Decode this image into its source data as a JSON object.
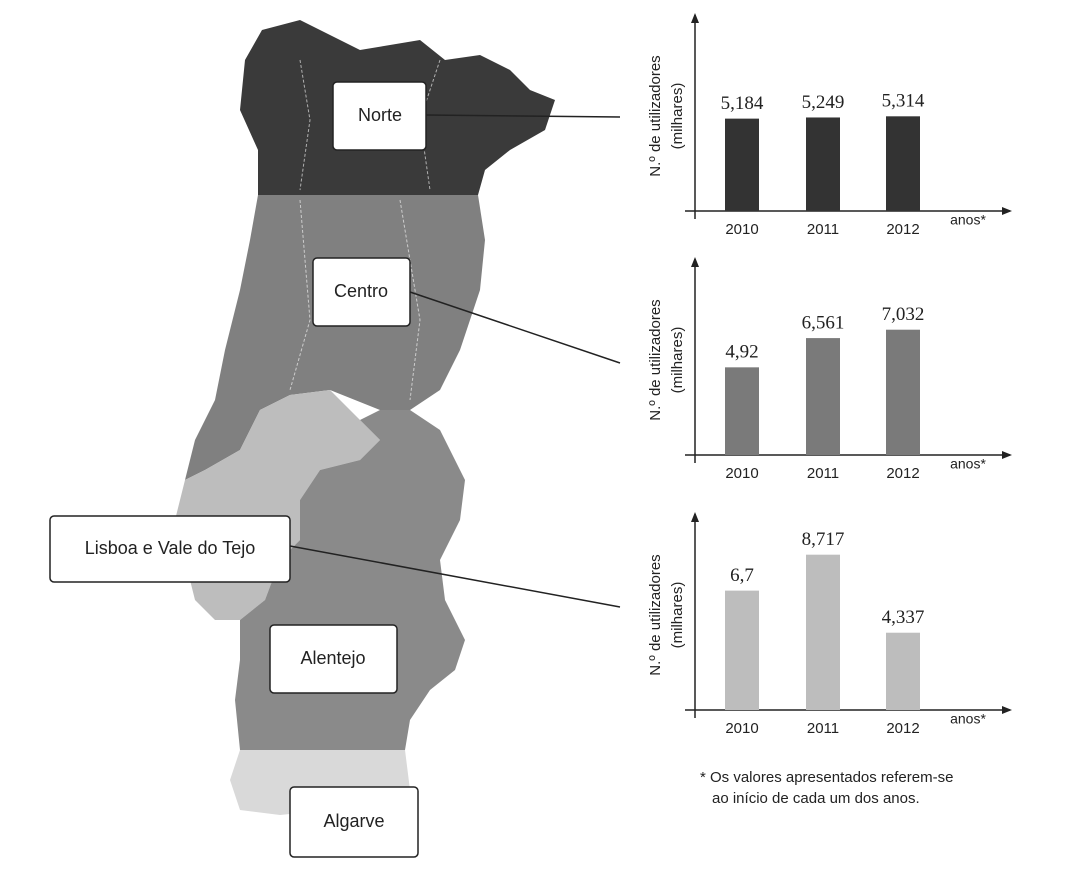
{
  "chart_data": [
    {
      "type": "bar",
      "ylabel": [
        "N.º de utilizadores",
        "(milhares)"
      ],
      "xlabel": "anos*",
      "categories": [
        "2010",
        "2011",
        "2012"
      ],
      "values": [
        5.184,
        5.249,
        5.314
      ],
      "value_labels": [
        "5,184",
        "5,249",
        "5,314"
      ],
      "color": "#333333",
      "ylim": [
        0,
        11
      ]
    },
    {
      "type": "bar",
      "ylabel": [
        "N.º de utilizadores",
        "(milhares)"
      ],
      "xlabel": "anos*",
      "categories": [
        "2010",
        "2011",
        "2012"
      ],
      "values": [
        4.92,
        6.561,
        7.032
      ],
      "value_labels": [
        "4,92",
        "6,561",
        "7,032"
      ],
      "color": "#7a7a7a",
      "ylim": [
        0,
        11
      ]
    },
    {
      "type": "bar",
      "ylabel": [
        "N.º de utilizadores",
        "(milhares)"
      ],
      "xlabel": "anos*",
      "categories": [
        "2010",
        "2011",
        "2012"
      ],
      "values": [
        6.7,
        8.717,
        4.337
      ],
      "value_labels": [
        "6,7",
        "8,717",
        "4,337"
      ],
      "color": "#bdbdbd",
      "ylim": [
        0,
        11
      ]
    }
  ],
  "map": {
    "regions": [
      "Norte",
      "Centro",
      "Lisboa e Vale do Tejo",
      "Alentejo",
      "Algarve"
    ]
  },
  "footnote": [
    "* Os valores apresentados referem-se",
    "ao início de cada um dos anos."
  ]
}
